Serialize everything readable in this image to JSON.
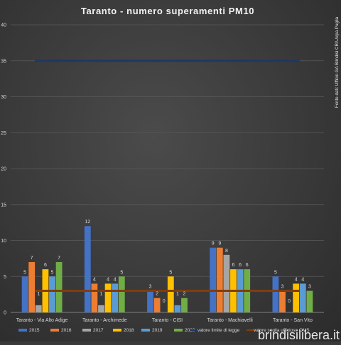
{
  "chart_data": {
    "type": "bar",
    "title": "Taranto  - numero superamenti  PM10",
    "categories": [
      "Taranto - Via Alto Adige",
      "Taranto -  Archimede",
      "Taranto - CISI",
      "Taranto -  Machiavelli",
      "Taranto - San Vito"
    ],
    "series": [
      {
        "name": "2015",
        "color": "#4472c4",
        "values": [
          5,
          12,
          3,
          9,
          5
        ]
      },
      {
        "name": "2016",
        "color": "#ed7d31",
        "values": [
          7,
          4,
          2,
          9,
          3
        ]
      },
      {
        "name": "2017",
        "color": "#a5a5a5",
        "values": [
          1,
          1,
          0,
          8,
          0
        ]
      },
      {
        "name": "2018",
        "color": "#ffc000",
        "values": [
          6,
          4,
          5,
          6,
          4
        ]
      },
      {
        "name": "2019",
        "color": "#5b9bd5",
        "values": [
          5,
          4,
          1,
          6,
          4
        ]
      },
      {
        "name": "2020",
        "color": "#70ad47",
        "values": [
          7,
          5,
          2,
          6,
          3
        ]
      }
    ],
    "reference_lines": [
      {
        "name": "valore limite di legge",
        "value": 35,
        "color": "#1f3864"
      },
      {
        "name": "valore soglia ufficioso OMS",
        "value": 3,
        "color": "#843c0c"
      }
    ],
    "yticks": [
      0,
      5,
      10,
      15,
      20,
      25,
      30,
      35,
      40
    ],
    "ylim": [
      0,
      40
    ],
    "grid": true,
    "legend_position": "bottom"
  },
  "source_note": "Fonte dati: Ufficio GA Brindisi  CRA Arpa Puglia",
  "watermark": "brindisilibera.it"
}
